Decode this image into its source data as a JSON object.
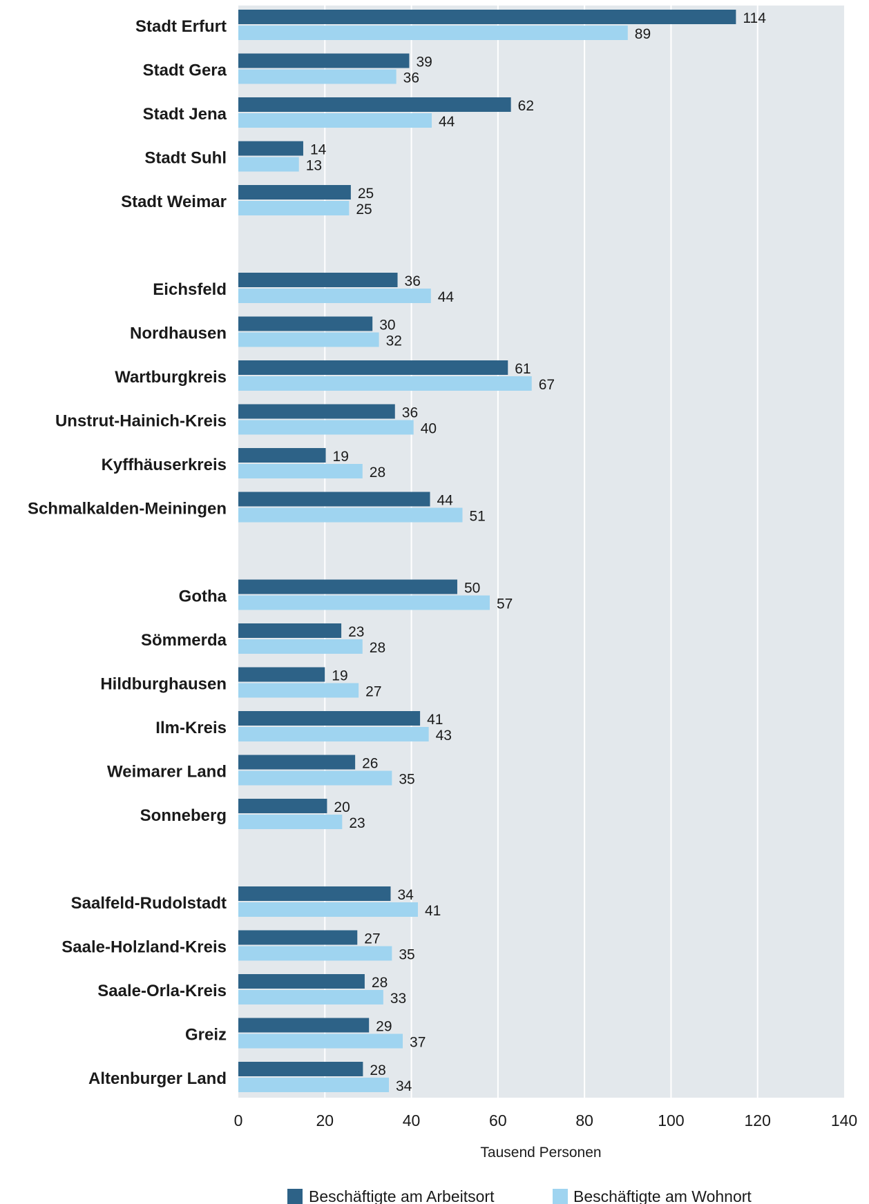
{
  "chart_data": {
    "type": "bar",
    "orientation": "horizontal",
    "categories": [
      "Stadt Erfurt",
      "Stadt Gera",
      "Stadt Jena",
      "Stadt Suhl",
      "Stadt Weimar",
      "Eichsfeld",
      "Nordhausen",
      "Wartburgkreis",
      "Unstrut-Hainich-Kreis",
      "Kyffhäuserkreis",
      "Schmalkalden-Meiningen",
      "Gotha",
      "Sömmerda",
      "Hildburghausen",
      "Ilm-Kreis",
      "Weimarer Land",
      "Sonneberg",
      "Saalfeld-Rudolstadt",
      "Saale-Holzland-Kreis",
      "Saale-Orla-Kreis",
      "Greiz",
      "Altenburger Land"
    ],
    "groups": [
      5,
      6,
      6,
      5
    ],
    "series": [
      {
        "name": "Beschäftigte am Arbeitsort",
        "color": "#2d6287",
        "values": [
          114,
          39,
          62,
          14,
          25,
          36,
          30,
          61,
          36,
          19,
          44,
          50,
          23,
          19,
          41,
          26,
          20,
          34,
          27,
          28,
          29,
          28
        ],
        "bar_values": [
          115,
          39.5,
          63,
          15,
          26,
          36.8,
          31,
          62.3,
          36.2,
          20.2,
          44.3,
          50.6,
          23.8,
          20,
          42,
          27,
          20.5,
          35.2,
          27.5,
          29.2,
          30.2,
          28.8
        ]
      },
      {
        "name": "Beschäftigte am Wohnort",
        "color": "#9fd4f0",
        "values": [
          89,
          36,
          44,
          13,
          25,
          44,
          32,
          67,
          40,
          28,
          51,
          57,
          28,
          27,
          43,
          35,
          23,
          41,
          35,
          33,
          37,
          34
        ],
        "bar_values": [
          90,
          36.5,
          44.7,
          14,
          25.6,
          44.5,
          32.5,
          67.8,
          40.5,
          28.7,
          51.8,
          58.1,
          28.7,
          27.8,
          44,
          35.5,
          24,
          41.5,
          35.5,
          33.5,
          38,
          34.8
        ]
      }
    ],
    "xlim": [
      0,
      140
    ],
    "xticks": [
      0,
      20,
      40,
      60,
      80,
      100,
      120,
      140
    ],
    "xlabel": "Tausend Personen",
    "grid": "vertical",
    "legend_position": "bottom",
    "plot_background": "#e3e8ec",
    "grid_color": "#ffffff"
  }
}
